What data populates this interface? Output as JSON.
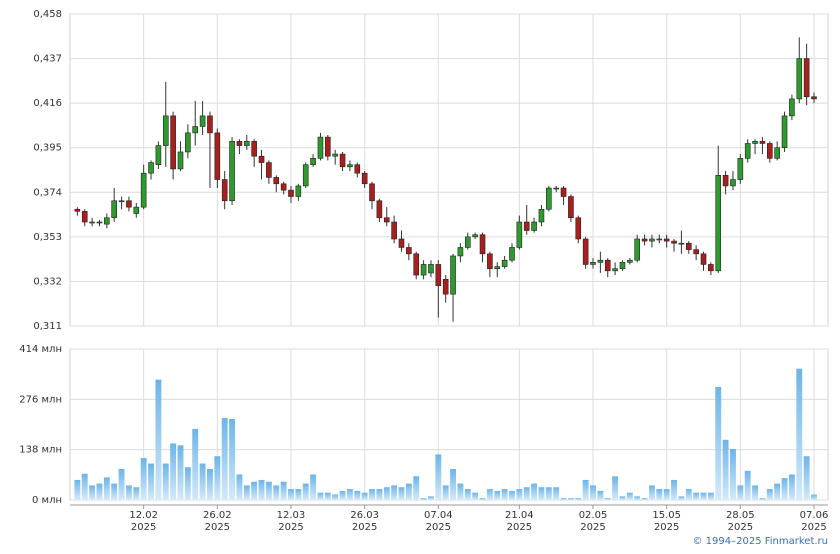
{
  "chart_data": [
    {
      "type": "candlestick",
      "up_color": "#2e9a2e",
      "down_color": "#a8201e",
      "grid": true,
      "ylim": [
        0.311,
        0.458
      ],
      "yticks": [
        {
          "value": 0.311,
          "label": "0,311"
        },
        {
          "value": 0.332,
          "label": "0,332"
        },
        {
          "value": 0.353,
          "label": "0,353"
        },
        {
          "value": 0.374,
          "label": "0,374"
        },
        {
          "value": 0.395,
          "label": "0,395"
        },
        {
          "value": 0.416,
          "label": "0,416"
        },
        {
          "value": 0.437,
          "label": "0,437"
        },
        {
          "value": 0.458,
          "label": "0,458"
        }
      ],
      "open": [
        0.366,
        0.365,
        0.36,
        0.36,
        0.359,
        0.362,
        0.37,
        0.37,
        0.364,
        0.367,
        0.383,
        0.387,
        0.396,
        0.41,
        0.385,
        0.393,
        0.402,
        0.405,
        0.41,
        0.402,
        0.38,
        0.37,
        0.398,
        0.396,
        0.398,
        0.391,
        0.388,
        0.381,
        0.378,
        0.375,
        0.372,
        0.377,
        0.387,
        0.39,
        0.4,
        0.391,
        0.392,
        0.386,
        0.387,
        0.383,
        0.378,
        0.37,
        0.362,
        0.36,
        0.352,
        0.348,
        0.345,
        0.335,
        0.336,
        0.34,
        0.333,
        0.326,
        0.344,
        0.348,
        0.353,
        0.354,
        0.345,
        0.338,
        0.339,
        0.342,
        0.348,
        0.36,
        0.356,
        0.36,
        0.366,
        0.376,
        0.376,
        0.372,
        0.362,
        0.352,
        0.34,
        0.341,
        0.342,
        0.337,
        0.338,
        0.341,
        0.342,
        0.352,
        0.351,
        0.352,
        0.352,
        0.351,
        0.35,
        0.35,
        0.347,
        0.345,
        0.34,
        0.337,
        0.382,
        0.377,
        0.38,
        0.39,
        0.397,
        0.398,
        0.397,
        0.39,
        0.395,
        0.41,
        0.418,
        0.437,
        0.419
      ],
      "high": [
        0.367,
        0.366,
        0.362,
        0.361,
        0.364,
        0.376,
        0.372,
        0.372,
        0.369,
        0.387,
        0.389,
        0.398,
        0.426,
        0.412,
        0.398,
        0.406,
        0.417,
        0.417,
        0.412,
        0.404,
        0.384,
        0.4,
        0.399,
        0.401,
        0.399,
        0.394,
        0.389,
        0.382,
        0.379,
        0.377,
        0.378,
        0.388,
        0.392,
        0.402,
        0.401,
        0.394,
        0.393,
        0.389,
        0.388,
        0.384,
        0.379,
        0.371,
        0.367,
        0.363,
        0.356,
        0.35,
        0.346,
        0.342,
        0.342,
        0.342,
        0.335,
        0.345,
        0.35,
        0.355,
        0.355,
        0.355,
        0.346,
        0.341,
        0.344,
        0.35,
        0.363,
        0.368,
        0.362,
        0.368,
        0.377,
        0.377,
        0.377,
        0.373,
        0.363,
        0.353,
        0.343,
        0.346,
        0.343,
        0.341,
        0.342,
        0.343,
        0.354,
        0.354,
        0.354,
        0.354,
        0.354,
        0.352,
        0.356,
        0.351,
        0.349,
        0.346,
        0.341,
        0.396,
        0.384,
        0.384,
        0.392,
        0.399,
        0.399,
        0.4,
        0.398,
        0.398,
        0.412,
        0.42,
        0.447,
        0.444,
        0.421
      ],
      "low": [
        0.363,
        0.358,
        0.358,
        0.358,
        0.357,
        0.36,
        0.366,
        0.365,
        0.362,
        0.366,
        0.38,
        0.385,
        0.386,
        0.38,
        0.384,
        0.39,
        0.396,
        0.401,
        0.376,
        0.376,
        0.366,
        0.368,
        0.392,
        0.394,
        0.386,
        0.38,
        0.378,
        0.374,
        0.373,
        0.369,
        0.37,
        0.376,
        0.386,
        0.389,
        0.389,
        0.387,
        0.384,
        0.384,
        0.381,
        0.376,
        0.366,
        0.36,
        0.358,
        0.35,
        0.346,
        0.342,
        0.333,
        0.333,
        0.334,
        0.315,
        0.322,
        0.313,
        0.341,
        0.347,
        0.352,
        0.341,
        0.334,
        0.334,
        0.338,
        0.341,
        0.347,
        0.354,
        0.355,
        0.358,
        0.365,
        0.374,
        0.368,
        0.36,
        0.35,
        0.338,
        0.338,
        0.336,
        0.334,
        0.335,
        0.337,
        0.34,
        0.341,
        0.349,
        0.348,
        0.35,
        0.348,
        0.346,
        0.345,
        0.345,
        0.342,
        0.337,
        0.335,
        0.336,
        0.373,
        0.375,
        0.378,
        0.388,
        0.392,
        0.392,
        0.388,
        0.389,
        0.393,
        0.408,
        0.416,
        0.415,
        0.416
      ],
      "close": [
        0.365,
        0.36,
        0.36,
        0.36,
        0.362,
        0.37,
        0.37,
        0.367,
        0.367,
        0.383,
        0.388,
        0.396,
        0.41,
        0.385,
        0.393,
        0.402,
        0.405,
        0.41,
        0.402,
        0.38,
        0.37,
        0.398,
        0.396,
        0.398,
        0.391,
        0.388,
        0.381,
        0.378,
        0.375,
        0.372,
        0.377,
        0.387,
        0.39,
        0.4,
        0.391,
        0.392,
        0.386,
        0.387,
        0.383,
        0.378,
        0.37,
        0.362,
        0.36,
        0.352,
        0.348,
        0.345,
        0.335,
        0.34,
        0.34,
        0.33,
        0.326,
        0.344,
        0.348,
        0.353,
        0.354,
        0.345,
        0.338,
        0.339,
        0.342,
        0.348,
        0.36,
        0.356,
        0.36,
        0.366,
        0.376,
        0.376,
        0.372,
        0.362,
        0.352,
        0.34,
        0.341,
        0.342,
        0.337,
        0.338,
        0.341,
        0.342,
        0.352,
        0.351,
        0.352,
        0.352,
        0.351,
        0.35,
        0.35,
        0.347,
        0.345,
        0.34,
        0.337,
        0.382,
        0.377,
        0.38,
        0.39,
        0.397,
        0.398,
        0.397,
        0.39,
        0.395,
        0.41,
        0.418,
        0.437,
        0.419,
        0.418
      ]
    },
    {
      "type": "bar",
      "grid": true,
      "xlim": [
        -1,
        101.9
      ],
      "xticks": [
        {
          "value": 9,
          "label": "12.02",
          "year": "2025"
        },
        {
          "value": 19,
          "label": "26.02",
          "year": "2025"
        },
        {
          "value": 29,
          "label": "12.03",
          "year": "2025"
        },
        {
          "value": 39,
          "label": "26.03",
          "year": "2025"
        },
        {
          "value": 49,
          "label": "07.04",
          "year": "2025"
        },
        {
          "value": 60,
          "label": "21.04",
          "year": "2025"
        },
        {
          "value": 70,
          "label": "02.05",
          "year": "2025"
        },
        {
          "value": 80,
          "label": "15.05",
          "year": "2025"
        },
        {
          "value": 90,
          "label": "28.05",
          "year": "2025"
        },
        {
          "value": 100,
          "label": "07.06",
          "year": "2025"
        }
      ],
      "ylim": [
        0,
        414
      ],
      "yticks": [
        {
          "value": 0,
          "label": "0 млн"
        },
        {
          "value": 138,
          "label": "138 млн"
        },
        {
          "value": 276,
          "label": "276 млн"
        },
        {
          "value": 414,
          "label": "414 млн"
        }
      ],
      "values": [
        55,
        72,
        40,
        45,
        62,
        45,
        85,
        40,
        35,
        115,
        100,
        330,
        100,
        155,
        150,
        90,
        195,
        100,
        85,
        120,
        225,
        222,
        70,
        40,
        50,
        55,
        50,
        40,
        50,
        30,
        30,
        45,
        70,
        20,
        20,
        15,
        25,
        30,
        25,
        20,
        30,
        30,
        35,
        40,
        35,
        45,
        65,
        5,
        10,
        125,
        40,
        85,
        45,
        30,
        20,
        5,
        30,
        25,
        30,
        25,
        30,
        35,
        45,
        35,
        35,
        35,
        5,
        5,
        5,
        55,
        40,
        25,
        5,
        65,
        10,
        20,
        10,
        5,
        40,
        30,
        30,
        55,
        10,
        30,
        20,
        20,
        20,
        310,
        165,
        140,
        40,
        80,
        40,
        5,
        30,
        45,
        60,
        70,
        360,
        120,
        15
      ]
    }
  ],
  "credit": "© 1994–2025 Finmarket.ru"
}
